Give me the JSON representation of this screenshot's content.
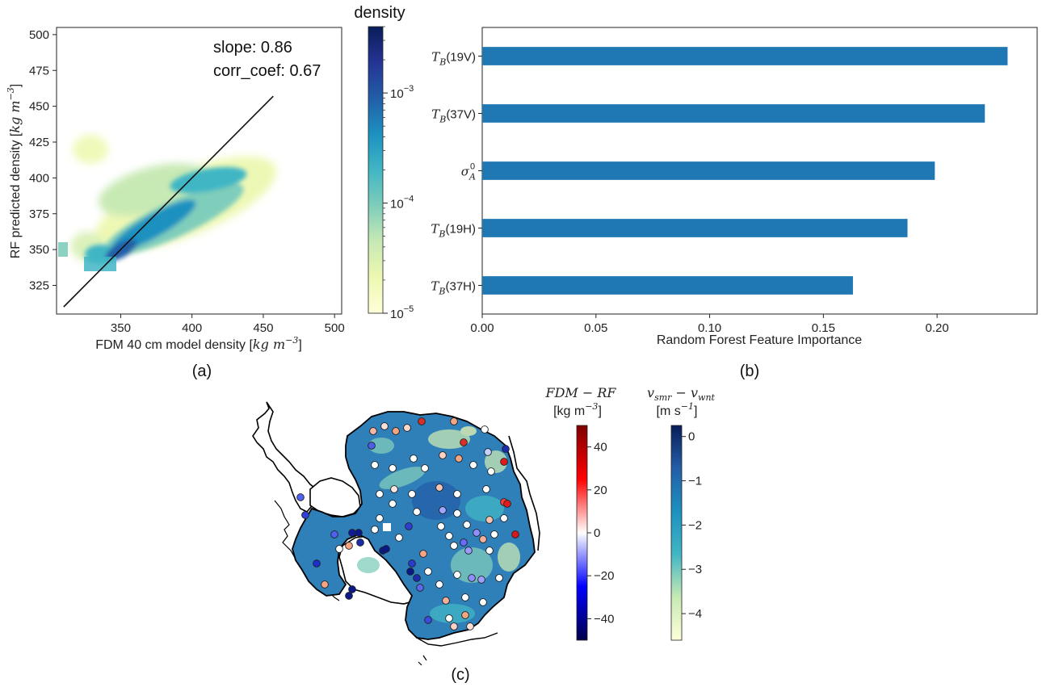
{
  "chart_data": [
    {
      "panel": "(a)",
      "type": "heatmap",
      "xlabel": "FDM 40 cm model density",
      "xlabel_unit_base": "kg m",
      "xlabel_unit_exp": "−3",
      "ylabel": "RF predicted density",
      "ylabel_unit_base": "kg m",
      "ylabel_unit_exp": "−3",
      "xlim": [
        305,
        505
      ],
      "ylim": [
        305,
        505
      ],
      "xticks": [
        350,
        400,
        450,
        500
      ],
      "yticks": [
        325,
        350,
        375,
        400,
        425,
        450,
        475,
        500
      ],
      "annotations": [
        "slope: 0.86",
        "corr_coef: 0.67"
      ],
      "fit_line": {
        "x": [
          310,
          457
        ],
        "y": [
          310,
          457
        ]
      },
      "colorbar": {
        "title": "density",
        "scale": "log",
        "range": [
          1e-05,
          0.004
        ],
        "ticks": [
          {
            "value": 1e-05,
            "base": "10",
            "exp": "−5"
          },
          {
            "value": 0.0001,
            "base": "10",
            "exp": "−4"
          },
          {
            "value": 0.001,
            "base": "10",
            "exp": "−3"
          }
        ],
        "cmap": [
          "#ffffd9",
          "#edf8b1",
          "#c7e9b4",
          "#7fcdbb",
          "#41b6c4",
          "#1d91c0",
          "#225ea8",
          "#253494",
          "#081d58"
        ]
      }
    },
    {
      "panel": "(b)",
      "type": "bar",
      "orientation": "horizontal",
      "xlabel": "Random Forest Feature Importance",
      "xlim": [
        0,
        0.244
      ],
      "xticks": [
        "0.00",
        "0.05",
        "0.10",
        "0.15",
        "0.20"
      ],
      "bar_color": "#1f77b4",
      "categories": [
        {
          "base": "T",
          "sub": "B",
          "suffix": "(19V)"
        },
        {
          "base": "T",
          "sub": "B",
          "suffix": "(37V)"
        },
        {
          "base": "σ",
          "sub": "A",
          "sup": "0",
          "suffix": ""
        },
        {
          "base": "T",
          "sub": "B",
          "suffix": "(19H)"
        },
        {
          "base": "T",
          "sub": "B",
          "suffix": "(37H)"
        }
      ],
      "values": [
        0.231,
        0.221,
        0.199,
        0.187,
        0.163
      ]
    },
    {
      "panel": "(c)",
      "type": "scatter",
      "description_map": "Antarctica",
      "colorbar_diff": {
        "title_line1": "FDM − RF",
        "title_line2": "[kg m",
        "title_exp": "−3",
        "range": [
          -50,
          50
        ],
        "ticks": [
          40,
          20,
          0,
          -20,
          -40
        ],
        "tick_labels": [
          "40",
          "20",
          "0",
          "−20",
          "−40"
        ],
        "cmap": [
          "#00004c",
          "#0000ff",
          "#ffffff",
          "#ff0000",
          "#7f0000"
        ]
      },
      "colorbar_wind": {
        "title_line1": "v",
        "title_sub1": "smr",
        "title_mid": " − v",
        "title_sub2": "wnt",
        "title_line2": "[m s",
        "title_exp": "−1",
        "range": [
          -4.6,
          0.25
        ],
        "ticks": [
          0,
          -1,
          -2,
          -3,
          -4
        ],
        "tick_labels": [
          "0",
          "−1",
          "−2",
          "−3",
          "−4"
        ],
        "cmap": [
          "#ffffd9",
          "#c7e9b4",
          "#41b6c4",
          "#1d91c0",
          "#225ea8",
          "#081d58"
        ]
      }
    }
  ],
  "panel_labels": [
    "(a)",
    "(b)",
    "(c)"
  ]
}
